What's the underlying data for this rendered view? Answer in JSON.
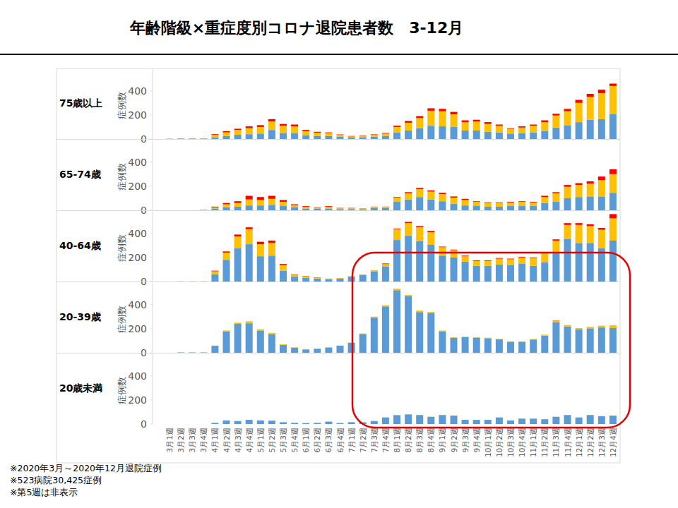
{
  "header": {
    "title": "年齢階級×重症度別コロナ退院患者数　3-12月"
  },
  "notes": [
    "※2020年3月～2020年12月退院症例",
    "※523病院30,425症例",
    "※第5週は非表示"
  ],
  "chart_data": [
    {
      "type": "bar",
      "title": "75歳以上",
      "ylabel": "症例数",
      "stacked": true,
      "grid": false,
      "tick_labels": "y",
      "ylim": [
        0,
        580
      ],
      "yticks": [
        0,
        200,
        400
      ],
      "categories": [
        "3月1週",
        "3月2週",
        "3月3週",
        "3月4週",
        "4月1週",
        "4月2週",
        "4月3週",
        "4月4週",
        "5月1週",
        "5月2週",
        "5月3週",
        "5月4週",
        "6月1週",
        "6月2週",
        "6月3週",
        "6月4週",
        "7月1週",
        "7月2週",
        "7月3週",
        "7月4週",
        "8月1週",
        "8月2週",
        "8月3週",
        "8月4週",
        "9月1週",
        "9月2週",
        "9月3週",
        "9月4週",
        "10月1週",
        "10月2週",
        "10月3週",
        "10月4週",
        "11月1週",
        "11月2週",
        "11月3週",
        "11月4週",
        "12月1週",
        "12月2週",
        "12月3週",
        "12月4週"
      ],
      "series": [
        {
          "color": "#5B9BD5",
          "values": [
            2,
            3,
            3,
            3,
            15,
            25,
            35,
            40,
            45,
            75,
            50,
            50,
            30,
            25,
            25,
            18,
            12,
            15,
            20,
            25,
            55,
            70,
            90,
            110,
            105,
            100,
            70,
            70,
            60,
            55,
            45,
            50,
            55,
            65,
            95,
            115,
            140,
            160,
            165,
            205
          ]
        },
        {
          "color": "#FFC000",
          "values": [
            1,
            1,
            1,
            1,
            20,
            30,
            40,
            50,
            55,
            70,
            60,
            55,
            35,
            28,
            25,
            17,
            10,
            12,
            17,
            20,
            45,
            65,
            85,
            125,
            125,
            105,
            70,
            75,
            65,
            55,
            40,
            45,
            55,
            75,
            100,
            115,
            160,
            190,
            215,
            235
          ]
        },
        {
          "color": "#FF0000",
          "values": [
            0,
            1,
            1,
            1,
            5,
            10,
            10,
            15,
            15,
            20,
            15,
            15,
            10,
            7,
            5,
            3,
            3,
            3,
            3,
            5,
            10,
            15,
            15,
            20,
            20,
            20,
            15,
            15,
            15,
            10,
            5,
            10,
            10,
            15,
            15,
            20,
            25,
            25,
            30,
            20
          ]
        }
      ]
    },
    {
      "type": "bar",
      "title": "65-74歳",
      "ylabel": "症例数",
      "stacked": true,
      "grid": false,
      "tick_labels": "y",
      "ylim": [
        0,
        580
      ],
      "yticks": [
        0,
        200,
        400
      ],
      "categories": [
        "3月1週",
        "3月2週",
        "3月3週",
        "3月4週",
        "4月1週",
        "4月2週",
        "4月3週",
        "4月4週",
        "5月1週",
        "5月2週",
        "5月3週",
        "5月4週",
        "6月1週",
        "6月2週",
        "6月3週",
        "6月4週",
        "7月1週",
        "7月2週",
        "7月3週",
        "7月4週",
        "8月1週",
        "8月2週",
        "8月3週",
        "8月4週",
        "9月1週",
        "9月2週",
        "9月3週",
        "9月4週",
        "10月1週",
        "10月2週",
        "10月3週",
        "10月4週",
        "11月1週",
        "11月2週",
        "11月3週",
        "11月4週",
        "12月1週",
        "12月2週",
        "12月3週",
        "12月4週"
      ],
      "series": [
        {
          "color": "#5B9BD5",
          "values": [
            0,
            0,
            0,
            2,
            12,
            25,
            30,
            40,
            40,
            45,
            35,
            25,
            15,
            12,
            15,
            10,
            10,
            8,
            20,
            20,
            70,
            90,
            110,
            90,
            75,
            55,
            40,
            35,
            30,
            30,
            35,
            35,
            35,
            60,
            70,
            100,
            110,
            115,
            115,
            145
          ]
        },
        {
          "color": "#FFC000",
          "values": [
            0,
            0,
            0,
            2,
            12,
            25,
            30,
            50,
            45,
            50,
            35,
            18,
            15,
            10,
            15,
            8,
            8,
            5,
            8,
            8,
            35,
            50,
            65,
            65,
            60,
            50,
            45,
            35,
            30,
            30,
            30,
            35,
            30,
            50,
            70,
            95,
            100,
            105,
            135,
            155
          ]
        },
        {
          "color": "#FF0000",
          "values": [
            0,
            0,
            0,
            1,
            6,
            10,
            15,
            30,
            25,
            25,
            15,
            7,
            5,
            3,
            5,
            2,
            2,
            2,
            2,
            2,
            5,
            10,
            10,
            10,
            10,
            10,
            10,
            5,
            5,
            5,
            5,
            5,
            5,
            10,
            10,
            15,
            15,
            20,
            30,
            40
          ]
        }
      ]
    },
    {
      "type": "bar",
      "title": "40-64歳",
      "ylabel": "症例数",
      "stacked": true,
      "grid": false,
      "tick_labels": "y",
      "ylim": [
        0,
        580
      ],
      "yticks": [
        0,
        200,
        400
      ],
      "categories": [
        "3月1週",
        "3月2週",
        "3月3週",
        "3月4週",
        "4月1週",
        "4月2週",
        "4月3週",
        "4月4週",
        "5月1週",
        "5月2週",
        "5月3週",
        "5月4週",
        "6月1週",
        "6月2週",
        "6月3週",
        "6月4週",
        "7月1週",
        "7月2週",
        "7月3週",
        "7月4週",
        "8月1週",
        "8月2週",
        "8月3週",
        "8月4週",
        "9月1週",
        "9月2週",
        "9月3週",
        "9月4週",
        "10月1週",
        "10月2週",
        "10月3週",
        "10月4週",
        "11月1週",
        "11月2週",
        "11月3週",
        "11月4週",
        "12月1週",
        "12月2週",
        "12月3週",
        "12月4週"
      ],
      "series": [
        {
          "color": "#5B9BD5",
          "values": [
            0,
            1,
            1,
            1,
            60,
            180,
            275,
            310,
            210,
            215,
            90,
            40,
            30,
            25,
            20,
            25,
            40,
            55,
            85,
            125,
            345,
            380,
            335,
            305,
            215,
            200,
            165,
            130,
            130,
            140,
            135,
            150,
            130,
            160,
            235,
            355,
            320,
            320,
            275,
            340
          ]
        },
        {
          "color": "#FFC000",
          "values": [
            0,
            1,
            1,
            1,
            25,
            60,
            100,
            125,
            100,
            105,
            45,
            17,
            12,
            8,
            5,
            5,
            5,
            5,
            10,
            20,
            90,
            105,
            115,
            105,
            70,
            60,
            45,
            40,
            40,
            50,
            50,
            50,
            65,
            75,
            105,
            115,
            150,
            140,
            155,
            185
          ]
        },
        {
          "color": "#FF0000",
          "values": [
            0,
            0,
            0,
            0,
            5,
            10,
            15,
            15,
            20,
            20,
            10,
            3,
            3,
            2,
            0,
            0,
            0,
            0,
            0,
            5,
            5,
            10,
            10,
            10,
            5,
            5,
            5,
            5,
            5,
            5,
            5,
            5,
            5,
            5,
            10,
            15,
            15,
            15,
            15,
            35
          ]
        }
      ]
    },
    {
      "type": "bar",
      "title": "20-39歳",
      "ylabel": "症例数",
      "stacked": true,
      "grid": false,
      "tick_labels": "y",
      "ylim": [
        0,
        580
      ],
      "yticks": [
        0,
        200,
        400
      ],
      "categories": [
        "3月1週",
        "3月2週",
        "3月3週",
        "3月4週",
        "4月1週",
        "4月2週",
        "4月3週",
        "4月4週",
        "5月1週",
        "5月2週",
        "5月3週",
        "5月4週",
        "6月1週",
        "6月2週",
        "6月3週",
        "6月4週",
        "7月1週",
        "7月2週",
        "7月3週",
        "7月4週",
        "8月1週",
        "8月2週",
        "8月3週",
        "8月4週",
        "9月1週",
        "9月2週",
        "9月3週",
        "9月4週",
        "10月1週",
        "10月2週",
        "10月3週",
        "10月4週",
        "11月1週",
        "11月2週",
        "11月3週",
        "11月4週",
        "12月1週",
        "12月2週",
        "12月3週",
        "12月4週"
      ],
      "series": [
        {
          "color": "#5B9BD5",
          "values": [
            0,
            3,
            3,
            3,
            58,
            178,
            240,
            245,
            185,
            155,
            65,
            42,
            28,
            34,
            44,
            59,
            83,
            157,
            292,
            385,
            520,
            472,
            338,
            330,
            178,
            125,
            131,
            126,
            121,
            112,
            92,
            92,
            110,
            143,
            255,
            218,
            195,
            203,
            210,
            205
          ]
        },
        {
          "color": "#FFC000",
          "values": [
            0,
            0,
            0,
            0,
            2,
            7,
            10,
            14,
            10,
            10,
            5,
            3,
            2,
            1,
            1,
            1,
            2,
            3,
            8,
            10,
            10,
            8,
            12,
            10,
            7,
            5,
            4,
            4,
            4,
            3,
            3,
            3,
            5,
            7,
            13,
            12,
            10,
            12,
            15,
            18
          ]
        },
        {
          "color": "#FF0000",
          "values": [
            0,
            0,
            0,
            0,
            0,
            0,
            0,
            1,
            0,
            0,
            0,
            0,
            0,
            0,
            0,
            0,
            0,
            0,
            0,
            0,
            1,
            0,
            0,
            0,
            0,
            0,
            0,
            0,
            0,
            0,
            0,
            0,
            0,
            0,
            2,
            0,
            0,
            0,
            0,
            2
          ]
        }
      ]
    },
    {
      "type": "bar",
      "title": "20歳未満",
      "ylabel": "症例数",
      "stacked": true,
      "grid": false,
      "tick_labels": true,
      "ylim": [
        0,
        580
      ],
      "yticks": [
        0,
        200,
        400
      ],
      "categories": [
        "3月1週",
        "3月2週",
        "3月3週",
        "3月4週",
        "4月1週",
        "4月2週",
        "4月3週",
        "4月4週",
        "5月1週",
        "5月2週",
        "5月3週",
        "5月4週",
        "6月1週",
        "6月2週",
        "6月3週",
        "6月4週",
        "7月1週",
        "7月2週",
        "7月3週",
        "7月4週",
        "8月1週",
        "8月2週",
        "8月3週",
        "8月4週",
        "9月1週",
        "9月2週",
        "9月3週",
        "9月4週",
        "10月1週",
        "10月2週",
        "10月3週",
        "10月4週",
        "11月1週",
        "11月2週",
        "11月3週",
        "11月4週",
        "12月1週",
        "12月2週",
        "12月3週",
        "12月4週"
      ],
      "series": [
        {
          "color": "#5B9BD5",
          "values": [
            0,
            0,
            0,
            0,
            10,
            30,
            25,
            35,
            30,
            28,
            15,
            10,
            8,
            10,
            20,
            8,
            15,
            15,
            25,
            55,
            74,
            80,
            75,
            60,
            75,
            70,
            35,
            35,
            35,
            55,
            30,
            45,
            45,
            40,
            60,
            75,
            55,
            75,
            65,
            70
          ]
        },
        {
          "color": "#FFC000",
          "values": [
            0,
            0,
            0,
            0,
            0,
            0,
            0,
            0,
            0,
            0,
            0,
            0,
            0,
            0,
            0,
            0,
            0,
            0,
            0,
            1,
            1,
            1,
            1,
            1,
            1,
            1,
            0,
            0,
            0,
            0,
            0,
            0,
            0,
            0,
            1,
            1,
            0,
            1,
            1,
            1
          ]
        },
        {
          "color": "#FF0000",
          "values": [
            0,
            0,
            0,
            0,
            0,
            0,
            0,
            0,
            0,
            0,
            0,
            0,
            0,
            0,
            0,
            0,
            0,
            0,
            0,
            0,
            0,
            0,
            0,
            0,
            0,
            0,
            0,
            0,
            0,
            0,
            0,
            0,
            0,
            0,
            0,
            0,
            0,
            0,
            0,
            0
          ]
        }
      ]
    }
  ]
}
